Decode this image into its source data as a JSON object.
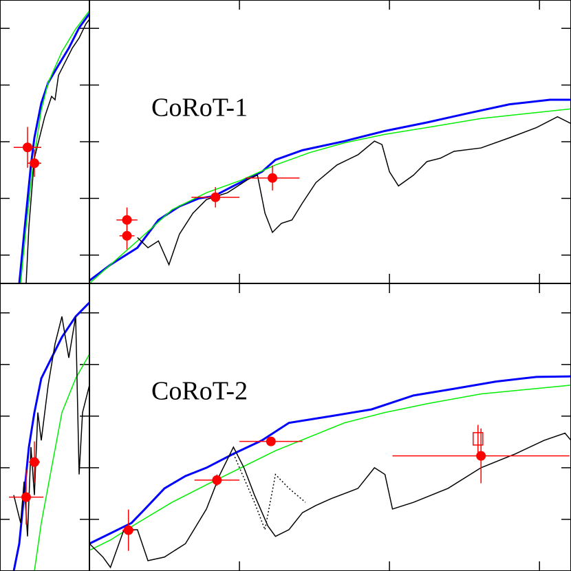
{
  "chart_data": [
    {
      "type": "line",
      "title": "CoRoT-1",
      "xlim": [
        0,
        3.21
      ],
      "ylim": [
        0.5,
        5.5
      ],
      "xticks": [
        1,
        2,
        3
      ],
      "yticks": [
        1,
        2,
        3,
        4,
        5
      ],
      "series": [
        {
          "color": "#0000ff",
          "width": 3,
          "x": [
            0,
            0.14,
            0.32,
            0.46,
            0.6,
            0.73,
            0.83,
            0.96,
            1.15,
            1.24,
            1.42,
            1.7,
            1.97,
            2.25,
            2.52,
            2.8,
            3.07,
            3.21
          ],
          "values": [
            0.55,
            0.83,
            1.13,
            1.62,
            1.86,
            2.0,
            2.04,
            2.22,
            2.47,
            2.68,
            2.85,
            3.01,
            3.19,
            3.34,
            3.5,
            3.66,
            3.74,
            3.74
          ]
        },
        {
          "color": "#00ee00",
          "width": 1.5,
          "x": [
            0,
            0.14,
            0.32,
            0.55,
            0.78,
            1.01,
            1.24,
            1.47,
            1.7,
            1.97,
            2.25,
            2.61,
            3.21
          ],
          "values": [
            0.5,
            0.83,
            1.25,
            1.8,
            2.1,
            2.32,
            2.59,
            2.81,
            2.98,
            3.13,
            3.25,
            3.41,
            3.58
          ]
        },
        {
          "color": "#000000",
          "width": 1.5,
          "x": [
            0.32,
            0.39,
            0.46,
            0.53,
            0.6,
            0.69,
            0.78,
            0.92,
            1.06,
            1.12,
            1.17,
            1.22,
            1.28,
            1.35,
            1.42,
            1.51,
            1.65,
            1.79,
            1.9,
            1.95,
            2.0,
            2.06,
            2.16,
            2.25,
            2.34,
            2.43,
            2.61,
            2.8,
            2.98,
            3.12,
            3.21
          ],
          "values": [
            1.31,
            1.13,
            1.25,
            0.83,
            1.37,
            1.74,
            1.98,
            2.1,
            2.34,
            2.41,
            1.74,
            1.4,
            1.56,
            1.62,
            1.92,
            2.28,
            2.59,
            2.77,
            3.01,
            2.95,
            2.47,
            2.22,
            2.41,
            2.65,
            2.71,
            2.83,
            2.89,
            3.07,
            3.25,
            3.44,
            3.32
          ]
        }
      ],
      "points": [
        {
          "color": "#ff0000",
          "marker": "circle",
          "x": [
            0.25,
            0.25,
            0.84,
            1.22
          ],
          "values": [
            1.34,
            1.62,
            2.02,
            2.36
          ],
          "xerr": [
            0.05,
            0.07,
            0.16,
            0.18
          ],
          "yerr": [
            0.24,
            0.22,
            0.18,
            0.22
          ]
        }
      ]
    },
    {
      "type": "line",
      "xlim": [
        0,
        1.3
      ],
      "ylim": [
        0.5,
        5.5
      ],
      "yticks": [
        1,
        2,
        3,
        4,
        5
      ],
      "series": [
        {
          "color": "#0000ff",
          "width": 3,
          "x": [
            0.28,
            0.35,
            0.4,
            0.45,
            0.5,
            0.6,
            0.7,
            0.85,
            1.0,
            1.15,
            1.3
          ],
          "values": [
            0.5,
            1.37,
            1.98,
            2.59,
            3.07,
            3.68,
            4.04,
            4.35,
            4.65,
            5.01,
            5.26
          ]
        },
        {
          "color": "#00ee00",
          "width": 1.5,
          "x": [
            0.3,
            0.38,
            0.48,
            0.6,
            0.7,
            0.9,
            1.1,
            1.3
          ],
          "values": [
            0.5,
            1.5,
            2.59,
            3.56,
            4.04,
            4.59,
            4.99,
            5.31
          ]
        },
        {
          "color": "#000000",
          "width": 1.5,
          "x": [
            0.38,
            0.42,
            0.5,
            0.65,
            0.75,
            0.8,
            0.85,
            0.95,
            1.05,
            1.15,
            1.25,
            1.3
          ],
          "values": [
            0.5,
            1.5,
            2.71,
            3.44,
            3.8,
            3.74,
            4.17,
            4.41,
            4.65,
            4.83,
            5.08,
            5.16
          ]
        }
      ],
      "points": [
        {
          "color": "#ff0000",
          "marker": "circle",
          "x": [
            0.4,
            0.5
          ],
          "values": [
            2.9,
            2.62
          ],
          "xerr": [
            0.2,
            0.1
          ],
          "yerr": [
            0.36,
            0.24
          ]
        }
      ]
    },
    {
      "type": "line",
      "title": "CoRoT-2",
      "xlim": [
        0,
        3.21
      ],
      "ylim": [
        0,
        5.57
      ],
      "xticks": [
        1,
        2,
        3
      ],
      "yticks": [
        1,
        2,
        3,
        4,
        5
      ],
      "series": [
        {
          "color": "#0000ff",
          "width": 3,
          "x": [
            0,
            0.14,
            0.28,
            0.37,
            0.5,
            0.64,
            0.78,
            0.96,
            1.15,
            1.33,
            1.61,
            1.88,
            2.16,
            2.43,
            2.71,
            2.98,
            3.21
          ],
          "values": [
            0.53,
            0.73,
            0.93,
            1.2,
            1.6,
            1.84,
            2.0,
            2.27,
            2.53,
            2.87,
            3.0,
            3.13,
            3.4,
            3.53,
            3.67,
            3.76,
            3.77
          ]
        },
        {
          "color": "#00ee00",
          "width": 1.5,
          "x": [
            0,
            0.14,
            0.32,
            0.55,
            0.78,
            1.01,
            1.24,
            1.47,
            1.7,
            1.97,
            2.25,
            2.61,
            3.21
          ],
          "values": [
            0.4,
            0.6,
            0.93,
            1.33,
            1.67,
            2.0,
            2.33,
            2.6,
            2.87,
            3.07,
            3.24,
            3.43,
            3.6
          ]
        },
        {
          "color": "#000000",
          "width": 1.5,
          "x": [
            0,
            0.09,
            0.14,
            0.23,
            0.32,
            0.39,
            0.5,
            0.64,
            0.78,
            0.87,
            0.96,
            1.03,
            1.1,
            1.19,
            1.24,
            1.33,
            1.42,
            1.51,
            1.61,
            1.79,
            1.9,
            1.97,
            2.02,
            2.16,
            2.39,
            2.61,
            2.84,
            3.03,
            3.17,
            3.21
          ],
          "values": [
            0.53,
            0.27,
            0.07,
            0.8,
            0.8,
            0.2,
            0.27,
            0.53,
            1.2,
            1.87,
            2.4,
            2.0,
            1.47,
            0.87,
            0.67,
            0.8,
            1.13,
            1.27,
            1.4,
            1.6,
            2.0,
            1.87,
            1.2,
            1.33,
            1.6,
            2.0,
            2.27,
            2.53,
            2.67,
            2.53
          ]
        },
        {
          "color": "#000000",
          "width": 1.5,
          "dash": "dotted",
          "x": [
            0.96,
            1.1,
            1.17,
            1.24,
            1.33,
            1.44
          ],
          "values": [
            2.27,
            1.33,
            0.8,
            1.87,
            1.6,
            1.33
          ]
        }
      ],
      "points": [
        {
          "color": "#ff0000",
          "marker": "circle",
          "x": [
            0.26,
            0.85,
            1.21,
            2.61
          ],
          "values": [
            0.79,
            1.76,
            2.51,
            2.23
          ],
          "xerr": [
            0.04,
            0.15,
            0.21,
            0.59
          ],
          "yerr": [
            0.4,
            0.11,
            0.08,
            0.53
          ]
        },
        {
          "color": "#ff0000",
          "marker": "square-open",
          "x": [
            2.59
          ],
          "values": [
            2.56
          ],
          "xerr": [
            0
          ],
          "yerr": [
            0.27
          ]
        }
      ]
    },
    {
      "type": "line",
      "xlim": [
        0,
        1.3
      ],
      "ylim": [
        0,
        5.57
      ],
      "yticks": [
        1,
        2,
        3,
        4,
        5
      ],
      "series": [
        {
          "color": "#0000ff",
          "width": 3,
          "x": [
            0.2,
            0.28,
            0.35,
            0.42,
            0.5,
            0.6,
            0.75,
            0.9,
            1.1,
            1.3
          ],
          "values": [
            0,
            0.53,
            1.47,
            2.4,
            3.07,
            3.73,
            4.13,
            4.53,
            4.93,
            5.2
          ]
        },
        {
          "color": "#00ee00",
          "width": 1.5,
          "x": [
            0.5,
            0.6,
            0.75,
            0.9,
            1.1,
            1.3
          ],
          "values": [
            0,
            0.93,
            2.0,
            3.07,
            3.73,
            4.2
          ]
        },
        {
          "color": "#000000",
          "width": 1.5,
          "x": [
            0.2,
            0.3,
            0.35,
            0.4,
            0.45,
            0.5,
            0.55,
            0.6,
            0.7,
            0.8,
            0.9,
            1.0,
            1.1,
            1.15,
            1.2,
            1.3
          ],
          "values": [
            1.47,
            0.93,
            1.73,
            0.67,
            2.4,
            1.47,
            3.07,
            2.53,
            3.6,
            4.4,
            4.93,
            4.13,
            4.93,
            1.87,
            3.07,
            3.6
          ]
        }
      ],
      "points": [
        {
          "color": "#ff0000",
          "marker": "circle",
          "x": [
            0.38,
            0.5
          ],
          "values": [
            1.43,
            2.11
          ],
          "xerr": [
            0.25,
            0.08
          ],
          "yerr": [
            0.53,
            0.4
          ]
        }
      ]
    }
  ]
}
